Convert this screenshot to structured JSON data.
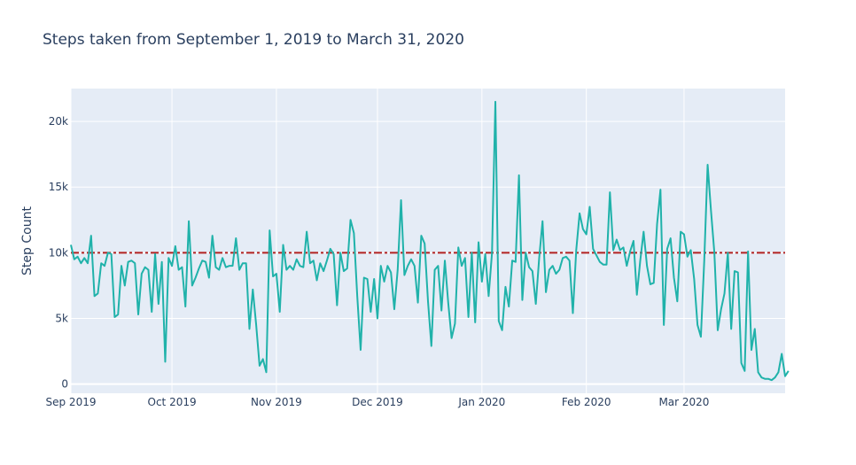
{
  "chart_data": {
    "type": "line",
    "title": "Steps taken from September 1, 2019 to March 31, 2020",
    "xlabel": "",
    "ylabel": "Step Count",
    "x_start": "2019-09-01",
    "x_end": "2020-03-31",
    "xlim": [
      "2019-09-01",
      "2020-03-31"
    ],
    "ylim": [
      -700,
      22500
    ],
    "x_ticks": [
      {
        "date": "2019-09-01",
        "label": "Sep 2019"
      },
      {
        "date": "2019-10-01",
        "label": "Oct 2019"
      },
      {
        "date": "2019-11-01",
        "label": "Nov 2019"
      },
      {
        "date": "2019-12-01",
        "label": "Dec 2019"
      },
      {
        "date": "2020-01-01",
        "label": "Jan 2020"
      },
      {
        "date": "2020-02-01",
        "label": "Feb 2020"
      },
      {
        "date": "2020-03-01",
        "label": "Mar 2020"
      }
    ],
    "y_ticks": [
      {
        "value": 0,
        "label": "0"
      },
      {
        "value": 5000,
        "label": "5k"
      },
      {
        "value": 10000,
        "label": "10k"
      },
      {
        "value": 15000,
        "label": "15k"
      },
      {
        "value": 20000,
        "label": "20k"
      }
    ],
    "grid": true,
    "series": [
      {
        "color": "#20b2aa",
        "values": [
          10600,
          9500,
          9700,
          9200,
          9600,
          9200,
          11300,
          6700,
          6900,
          9200,
          9000,
          10000,
          9900,
          5100,
          5300,
          9000,
          7500,
          9300,
          9400,
          9200,
          5300,
          8400,
          8900,
          8700,
          5500,
          9900,
          6100,
          9300,
          1700,
          9600,
          9000,
          10500,
          8700,
          8900,
          5900,
          12400,
          7500,
          8100,
          8800,
          9400,
          9300,
          8100,
          11300,
          8900,
          8700,
          9600,
          8900,
          9000,
          9000,
          11100,
          8700,
          9200,
          9200,
          4200,
          7200,
          4500,
          1400,
          1900,
          900,
          11700,
          8200,
          8400,
          5500,
          10600,
          8700,
          9000,
          8700,
          9500,
          9000,
          8900,
          11600,
          9200,
          9400,
          7900,
          9200,
          8600,
          9400,
          10300,
          9900,
          6000,
          10000,
          8600,
          8800,
          12500,
          11500,
          6700,
          2600,
          8100,
          8000,
          5500,
          8000,
          5000,
          9000,
          7800,
          9000,
          8500,
          5700,
          8700,
          14000,
          8300,
          9000,
          9500,
          9000,
          6200,
          11300,
          10700,
          6300,
          2900,
          8700,
          9000,
          5600,
          9400,
          6200,
          3500,
          4600,
          10400,
          9000,
          9600,
          5100,
          10000,
          4700,
          10800,
          7800,
          9900,
          6700,
          10000,
          21500,
          4800,
          4100,
          7400,
          5900,
          9400,
          9300,
          15900,
          6400,
          10000,
          8900,
          8600,
          6100,
          9600,
          12400,
          7000,
          8700,
          9000,
          8400,
          8700,
          9600,
          9700,
          9400,
          5400,
          10200,
          13000,
          11800,
          11400,
          13500,
          10300,
          9800,
          9300,
          9100,
          9100,
          14600,
          10200,
          11000,
          10200,
          10400,
          9000,
          10100,
          10900,
          6800,
          9400,
          11600,
          9000,
          7600,
          7700,
          12200,
          14800,
          4500,
          10300,
          11100,
          8100,
          6300,
          11600,
          11400,
          9700,
          10200,
          8000,
          4500,
          3600,
          9400,
          16700,
          13200,
          10000,
          4100,
          5700,
          6900,
          10000,
          4200,
          8600,
          8500,
          1600,
          1000,
          10100,
          2600,
          4200,
          900,
          500,
          400,
          400,
          300,
          500,
          900,
          2300,
          600,
          1000
        ]
      },
      {
        "name": "",
        "type": "reference-line",
        "color": "#b22222",
        "style": "dash-dot",
        "values": [
          10000
        ]
      }
    ]
  }
}
